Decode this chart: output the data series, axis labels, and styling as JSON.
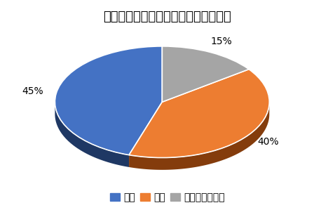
{
  "title": "ムーヴキャンバスの燃費の満足度調査",
  "labels": [
    "満足",
    "不満",
    "どちらでもない"
  ],
  "values": [
    45,
    40,
    15
  ],
  "colors": [
    "#4472C4",
    "#ED7D31",
    "#A5A5A5"
  ],
  "dark_colors": [
    "#1F3864",
    "#843C0C",
    "#7B7B7B"
  ],
  "autopct_labels": [
    "45%",
    "40%",
    "15%"
  ],
  "legend_labels": [
    "満足",
    "不満",
    "どちらでもない"
  ],
  "title_fontsize": 13,
  "label_fontsize": 10,
  "legend_fontsize": 9,
  "startangle": 90,
  "background_color": "#FFFFFF"
}
